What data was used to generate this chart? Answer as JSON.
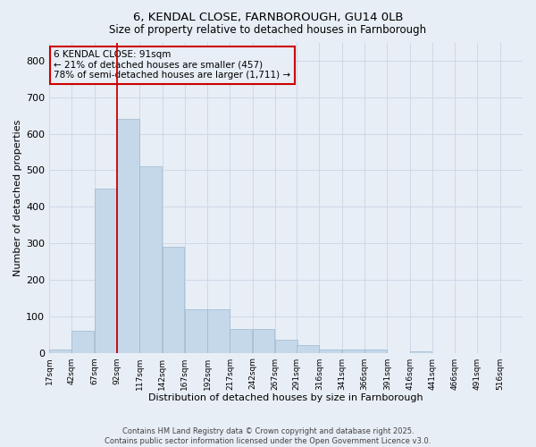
{
  "title1": "6, KENDAL CLOSE, FARNBOROUGH, GU14 0LB",
  "title2": "Size of property relative to detached houses in Farnborough",
  "xlabel": "Distribution of detached houses by size in Farnborough",
  "ylabel": "Number of detached properties",
  "bar_values": [
    10,
    60,
    450,
    640,
    510,
    290,
    120,
    120,
    65,
    65,
    35,
    20,
    10,
    10,
    10,
    0,
    5,
    0,
    0,
    0
  ],
  "bin_edges": [
    17,
    42,
    67,
    92,
    117,
    142,
    167,
    192,
    217,
    242,
    267,
    291,
    316,
    341,
    366,
    391,
    416,
    441,
    466,
    491,
    516
  ],
  "tick_labels": [
    "17sqm",
    "42sqm",
    "67sqm",
    "92sqm",
    "117sqm",
    "142sqm",
    "167sqm",
    "192sqm",
    "217sqm",
    "242sqm",
    "267sqm",
    "291sqm",
    "316sqm",
    "341sqm",
    "366sqm",
    "391sqm",
    "416sqm",
    "441sqm",
    "466sqm",
    "491sqm",
    "516sqm"
  ],
  "bar_color": "#c5d8ea",
  "bar_edge_color": "#9ab8d0",
  "grid_color": "#cdd8e8",
  "vline_x": 92,
  "vline_color": "#cc0000",
  "annotation_title": "6 KENDAL CLOSE: 91sqm",
  "annotation_line1": "← 21% of detached houses are smaller (457)",
  "annotation_line2": "78% of semi-detached houses are larger (1,711) →",
  "annotation_box_color": "#cc0000",
  "ylim": [
    0,
    850
  ],
  "yticks": [
    0,
    100,
    200,
    300,
    400,
    500,
    600,
    700,
    800
  ],
  "footer1": "Contains HM Land Registry data © Crown copyright and database right 2025.",
  "footer2": "Contains public sector information licensed under the Open Government Licence v3.0.",
  "background_color": "#e8eef5",
  "title1_fontsize": 9.5,
  "title2_fontsize": 8.5
}
